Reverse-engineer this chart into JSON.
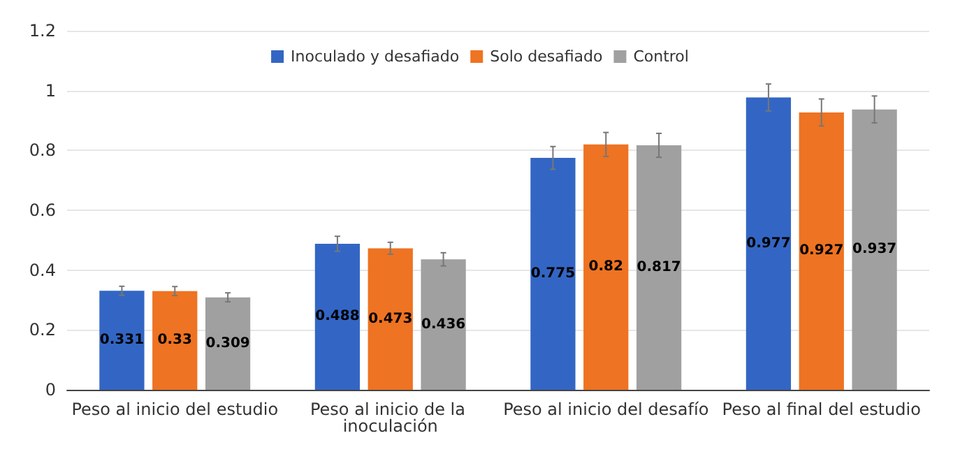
{
  "chart_data": {
    "type": "bar",
    "categories": [
      "Peso al inicio del estudio",
      "Peso al inicio de la inoculación",
      "Peso al inicio del desafío",
      "Peso al final del estudio"
    ],
    "series": [
      {
        "name": "Inoculado y desafiado",
        "color": "#3366c4",
        "values": [
          0.331,
          0.488,
          0.775,
          0.977
        ],
        "errors": [
          0.015,
          0.025,
          0.038,
          0.045
        ]
      },
      {
        "name": "Solo desafiado",
        "color": "#ee7322",
        "values": [
          0.33,
          0.473,
          0.82,
          0.927
        ],
        "errors": [
          0.015,
          0.02,
          0.04,
          0.045
        ]
      },
      {
        "name": "Control",
        "color": "#a0a0a0",
        "values": [
          0.309,
          0.436,
          0.817,
          0.937
        ],
        "errors": [
          0.015,
          0.022,
          0.04,
          0.045
        ]
      }
    ],
    "ylim": [
      0,
      1.2
    ],
    "yticks": [
      0,
      0.2,
      0.4,
      0.6,
      0.8,
      1,
      1.2
    ],
    "grid": "y",
    "legend": "top",
    "data_labels": true
  }
}
